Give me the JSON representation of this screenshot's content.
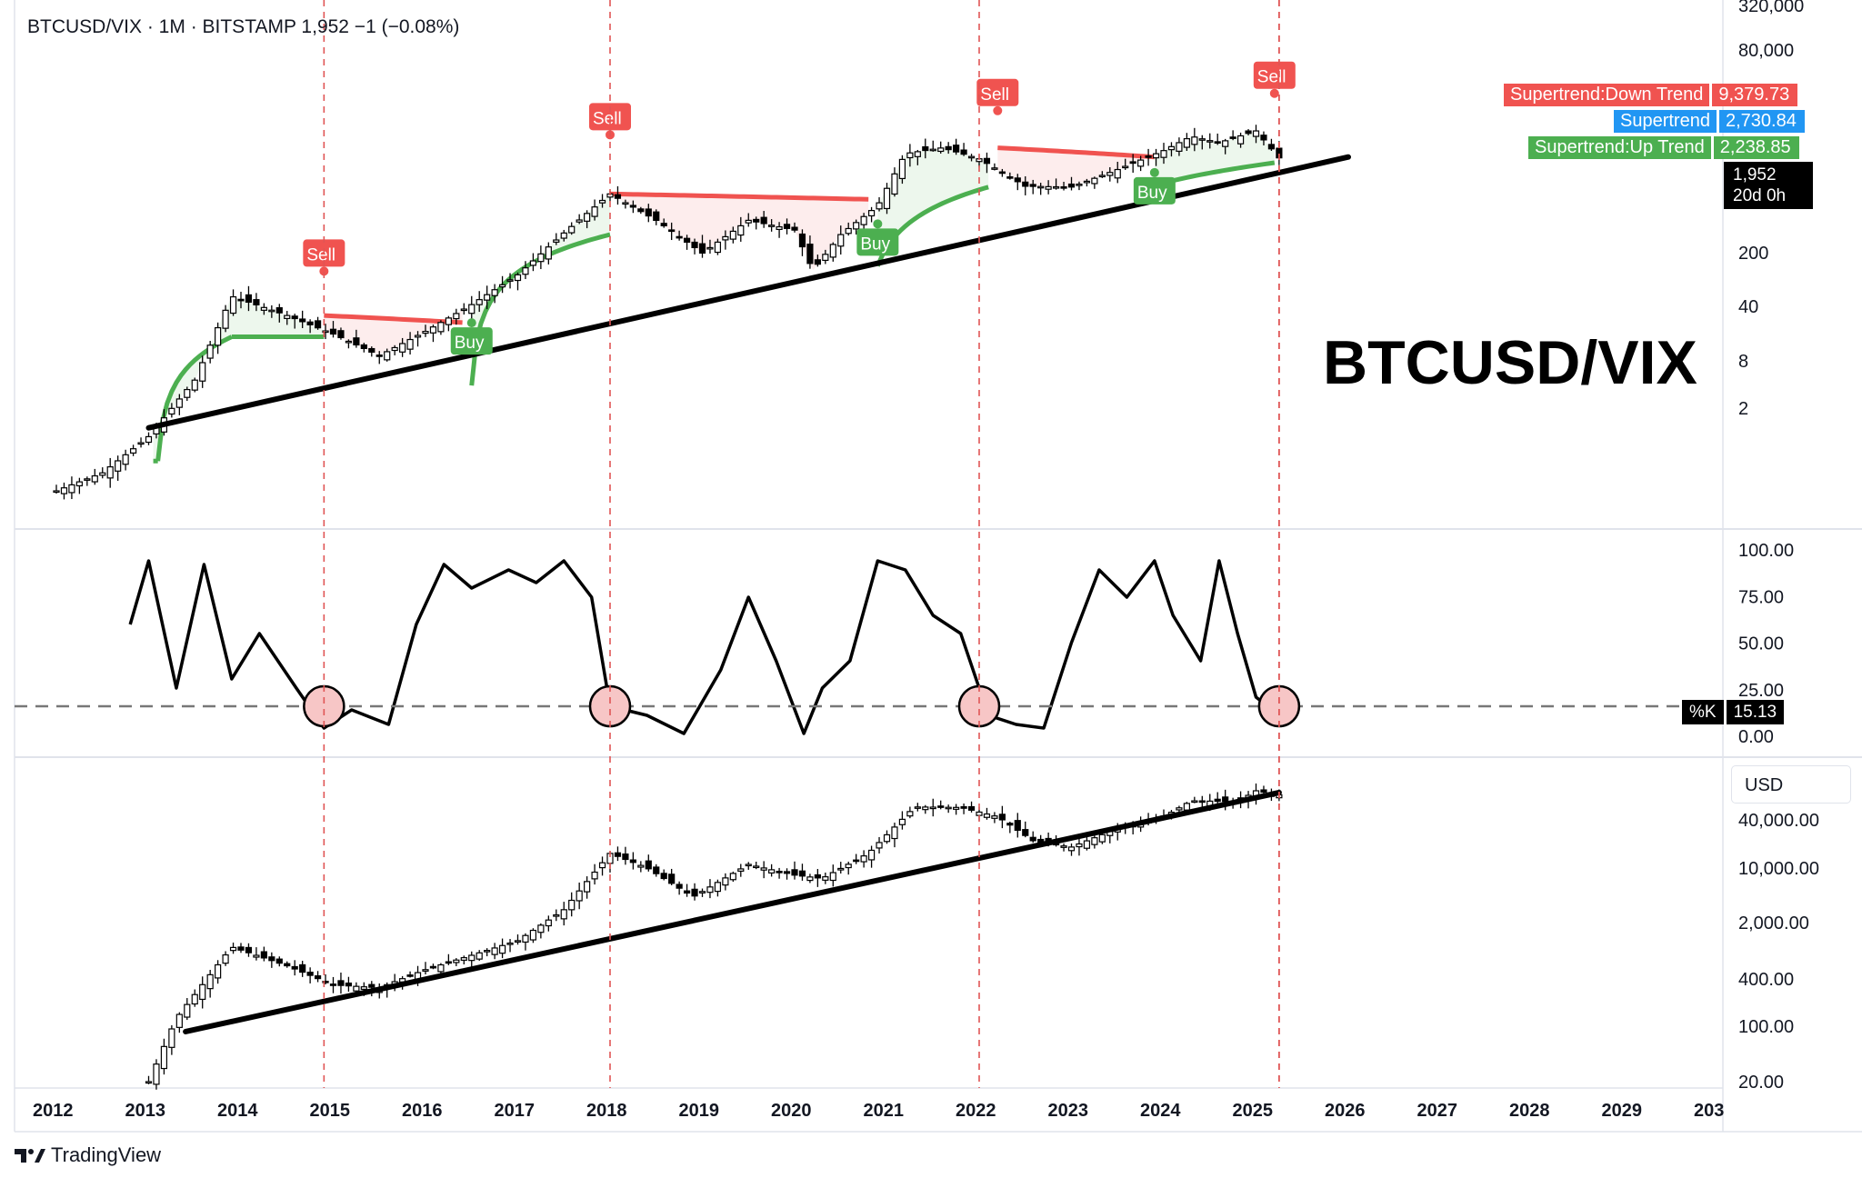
{
  "header": {
    "symbol_line": "BTCUSD/VIX · 1M · BITSTAMP  1,952  −1 (−0.08%)"
  },
  "overlay_title": "BTCUSD/VIX",
  "brand": {
    "name": "TradingView",
    "icon": "tradingview-logo-icon"
  },
  "legend": {
    "down_label": "Supertrend:Down Trend",
    "down_value": "9,379.73",
    "mid_label": "Supertrend",
    "mid_value": "2,730.84",
    "up_label": "Supertrend:Up Trend",
    "up_value": "2,238.85"
  },
  "last_price": {
    "value": "1,952",
    "countdown": "20d 0h"
  },
  "stoch_label": {
    "name": "%K",
    "value": "15.13"
  },
  "usd_label": "USD",
  "colors": {
    "bull": "#4caf50",
    "bear": "#f05350",
    "blue": "#2196f3",
    "marker": "#f7c6c6",
    "dash": "#e05555"
  },
  "chart_data": [
    {
      "type": "line",
      "panel": "BTCUSD/VIX monthly candles with Supertrend",
      "title": "BTCUSD/VIX · 1M · BITSTAMP",
      "scale": "log",
      "y_ticks": [
        "320,000",
        "80,000",
        "200",
        "40",
        "8",
        "2"
      ],
      "x_ticks": [
        "2012",
        "2013",
        "2014",
        "2015",
        "2016",
        "2017",
        "2018",
        "2019",
        "2020",
        "2021",
        "2022",
        "2023",
        "2024",
        "2025",
        "2026",
        "2027",
        "2028",
        "2029",
        "203"
      ],
      "series": [
        {
          "name": "BTCUSD/VIX",
          "x": [
            2012.0,
            2012.5,
            2013.0,
            2013.5,
            2013.9,
            2014.5,
            2015.0,
            2015.5,
            2016.0,
            2016.5,
            2017.0,
            2017.5,
            2018.0,
            2018.5,
            2019.0,
            2019.5,
            2020.0,
            2020.2,
            2020.5,
            2020.9,
            2021.2,
            2021.6,
            2022.0,
            2022.5,
            2023.0,
            2023.5,
            2024.0,
            2024.3,
            2024.6,
            2025.0,
            2025.25
          ],
          "values": [
            0.15,
            0.25,
            0.7,
            3.5,
            38,
            22,
            13,
            7,
            14,
            30,
            70,
            230,
            700,
            330,
            130,
            330,
            250,
            80,
            220,
            500,
            2200,
            2600,
            1900,
            870,
            850,
            1400,
            2400,
            3600,
            3000,
            4200,
            1952
          ]
        }
      ],
      "annotations": [
        {
          "label": "Sell",
          "x": 2014.9
        },
        {
          "label": "Buy",
          "x": 2016.5
        },
        {
          "label": "Sell",
          "x": 2018.0
        },
        {
          "label": "Buy",
          "x": 2020.9
        },
        {
          "label": "Sell",
          "x": 2022.2
        },
        {
          "label": "Buy",
          "x": 2023.9
        },
        {
          "label": "Sell",
          "x": 2025.2
        }
      ]
    },
    {
      "type": "line",
      "panel": "Stochastic %K",
      "y_ticks": [
        "100.00",
        "75.00",
        "50.00",
        "25.00",
        "0.00"
      ],
      "ylim": [
        0,
        100
      ],
      "threshold": 20,
      "series": [
        {
          "name": "%K",
          "x": [
            2012.8,
            2013.0,
            2013.3,
            2013.6,
            2013.9,
            2014.2,
            2014.6,
            2014.9,
            2015.2,
            2015.6,
            2015.9,
            2016.2,
            2016.5,
            2016.9,
            2017.2,
            2017.5,
            2017.8,
            2018.0,
            2018.4,
            2018.8,
            2019.2,
            2019.5,
            2019.8,
            2020.1,
            2020.3,
            2020.6,
            2020.9,
            2021.2,
            2021.5,
            2021.8,
            2022.1,
            2022.4,
            2022.7,
            2023.0,
            2023.3,
            2023.6,
            2023.9,
            2024.1,
            2024.4,
            2024.6,
            2024.8,
            2025.0,
            2025.25
          ],
          "values": [
            65,
            100,
            30,
            98,
            35,
            60,
            30,
            8,
            18,
            10,
            65,
            98,
            85,
            95,
            88,
            100,
            80,
            20,
            15,
            5,
            40,
            80,
            45,
            5,
            30,
            45,
            100,
            95,
            70,
            60,
            15,
            10,
            8,
            55,
            95,
            80,
            100,
            70,
            45,
            100,
            60,
            25,
            15.13
          ]
        }
      ],
      "markers": [
        2014.9,
        2018.0,
        2022.0,
        2025.25
      ]
    },
    {
      "type": "line",
      "panel": "BTCUSD monthly candles",
      "scale": "log",
      "y_ticks": [
        "40,000.00",
        "10,000.00",
        "2,000.00",
        "400.00",
        "100.00",
        "20.00"
      ],
      "series": [
        {
          "name": "BTCUSD",
          "x": [
            2013.0,
            2013.3,
            2013.9,
            2014.5,
            2015.0,
            2015.5,
            2016.0,
            2016.5,
            2017.0,
            2017.5,
            2018.0,
            2018.4,
            2018.9,
            2019.5,
            2020.0,
            2020.3,
            2020.8,
            2021.3,
            2021.8,
            2022.2,
            2022.6,
            2023.0,
            2023.5,
            2024.0,
            2024.3,
            2024.8,
            2025.0,
            2025.25
          ],
          "values": [
            13,
            90,
            800,
            450,
            250,
            230,
            400,
            620,
            970,
            2500,
            14000,
            9000,
            3700,
            10000,
            7200,
            6500,
            14000,
            58000,
            57000,
            43000,
            20000,
            17000,
            30000,
            43000,
            70000,
            68000,
            95000,
            84000
          ]
        }
      ],
      "trendline": {
        "x": [
          2013.4,
          2025.25
        ],
        "values": [
          60,
          90000
        ]
      }
    }
  ]
}
